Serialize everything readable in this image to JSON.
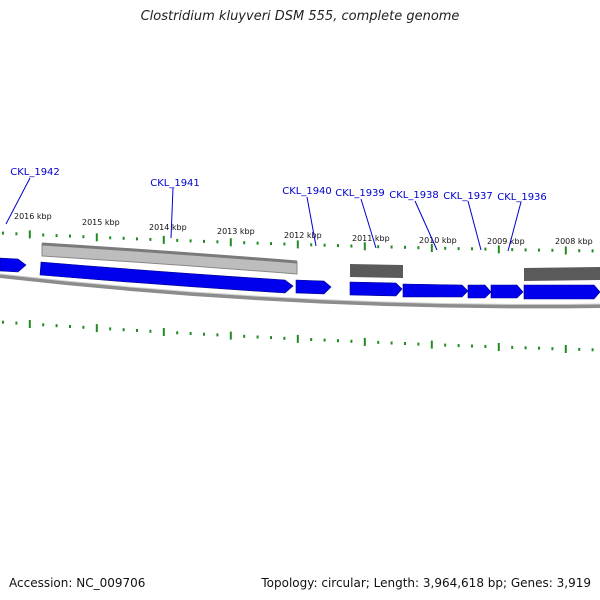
{
  "title": "Clostridium kluyveri DSM 555, complete genome",
  "footer": {
    "accession": "Accession: NC_009706",
    "topology": "Topology: circular; Length: 3,964,618 bp; Genes: 3,919"
  },
  "colors": {
    "gene_forward": "#0000ee",
    "gene_reverse_light": "#bdbdbd",
    "gene_reverse_dark": "#5a5a5a",
    "backbone": "#8c8c8c",
    "tick": "#228b22",
    "label": "#0000cc"
  },
  "scale_labels": [
    "2016 kbp",
    "2015 kbp",
    "2014 kbp",
    "2013 kbp",
    "2012 kbp",
    "2011 kbp",
    "2010 kbp",
    "2009 kbp",
    "2008 kbp"
  ],
  "gene_labels": [
    "CKL_1942",
    "CKL_1941",
    "CKL_1940",
    "CKL_1939",
    "CKL_1938",
    "CKL_1937",
    "CKL_1936"
  ]
}
